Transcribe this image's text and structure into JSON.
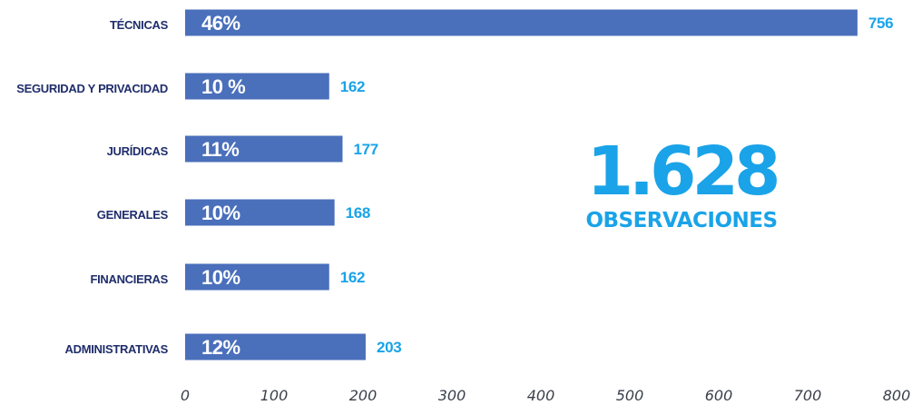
{
  "chart_data": {
    "type": "bar",
    "orientation": "horizontal",
    "categories": [
      "TÉCNICAS",
      "SEGURIDAD Y PRIVACIDAD",
      "JURÍDICAS",
      "GENERALES",
      "FINANCIERAS",
      "ADMINISTRATIVAS"
    ],
    "values": [
      756,
      162,
      177,
      168,
      162,
      203
    ],
    "percent_labels": [
      "46%",
      "10 %",
      "11%",
      "10%",
      "10%",
      "12%"
    ],
    "value_labels": [
      "756",
      "162",
      "177",
      "168",
      "162",
      "203"
    ],
    "x_ticks": [
      "0",
      "100",
      "200",
      "300",
      "400",
      "500",
      "600",
      "700",
      "800"
    ],
    "xlim": [
      0,
      800
    ],
    "grid": false,
    "bar_color": "#4a6fbb",
    "value_color": "#1aa3e8",
    "category_color": "#1f2d6b"
  },
  "summary": {
    "total": "1.628",
    "caption": "OBSERVACIONES"
  }
}
